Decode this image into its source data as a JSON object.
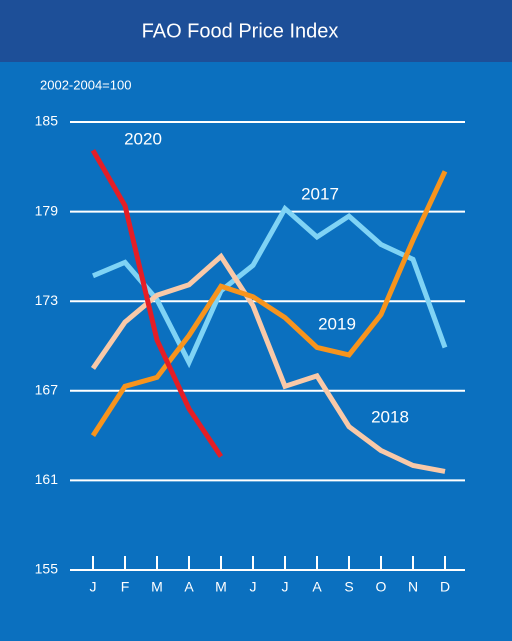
{
  "chart_data": {
    "type": "line",
    "title": "FAO Food Price Index",
    "subtitle": "2002-2004=100",
    "categories": [
      "J",
      "F",
      "M",
      "A",
      "M",
      "J",
      "J",
      "A",
      "S",
      "O",
      "N",
      "D"
    ],
    "series": [
      {
        "name": "2017",
        "color": "#7fd3f5",
        "values": [
          174.7,
          175.6,
          173.1,
          168.9,
          173.7,
          175.4,
          179.2,
          177.3,
          178.7,
          176.8,
          175.8,
          169.9
        ]
      },
      {
        "name": "2018",
        "color": "#f9c9a8",
        "values": [
          168.5,
          171.6,
          173.4,
          174.1,
          176.0,
          172.7,
          167.3,
          168.0,
          164.6,
          163.0,
          162.0,
          161.6
        ]
      },
      {
        "name": "2019",
        "color": "#f7941d",
        "values": [
          164.0,
          167.3,
          167.9,
          170.7,
          174.0,
          173.3,
          171.9,
          169.9,
          169.4,
          172.1,
          177.1,
          181.7
        ]
      },
      {
        "name": "2020",
        "color": "#e41e26",
        "values": [
          183.1,
          179.4,
          170.4,
          165.8,
          162.6,
          null,
          null,
          null,
          null,
          null,
          null,
          null
        ]
      }
    ],
    "ylim": [
      155,
      185
    ],
    "yticks": [
      155,
      161,
      167,
      173,
      179,
      185
    ],
    "grid": true
  }
}
